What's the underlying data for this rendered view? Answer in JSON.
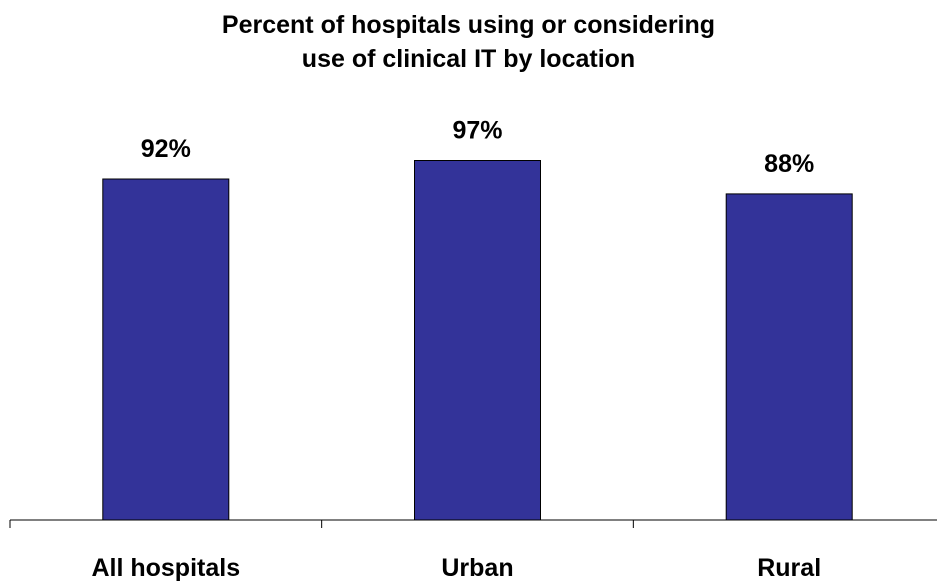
{
  "chart_data": {
    "type": "bar",
    "title_lines": [
      "Percent of hospitals  using or considering",
      "use of clinical IT by location"
    ],
    "categories": [
      "All hospitals",
      "Urban",
      "Rural"
    ],
    "values": [
      92,
      97,
      88
    ],
    "value_labels": [
      "92%",
      "97%",
      "88%"
    ],
    "ylim": [
      0,
      100
    ],
    "grid": false,
    "legend": "none",
    "colors": {
      "bar": "#333399",
      "bar_stroke": "#000000",
      "axis": "#000000"
    }
  }
}
